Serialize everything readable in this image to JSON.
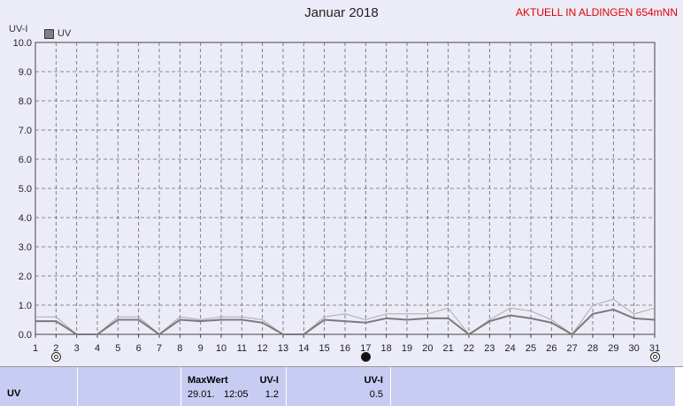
{
  "title": "Januar 2018",
  "station": "AKTUELL IN ALDINGEN 654mNN",
  "legend": {
    "label": "UV"
  },
  "moon_phases": [
    {
      "day": 2,
      "phase": "full"
    },
    {
      "day": 17,
      "phase": "new"
    },
    {
      "day": 31,
      "phase": "full"
    }
  ],
  "chart_data": {
    "type": "line",
    "ylabel": "UV-I",
    "ylim": [
      0,
      10
    ],
    "yticks": [
      "0.0",
      "1.0",
      "2.0",
      "3.0",
      "4.0",
      "5.0",
      "6.0",
      "7.0",
      "8.0",
      "9.0",
      "10.0"
    ],
    "x": [
      1,
      2,
      3,
      4,
      5,
      6,
      7,
      8,
      9,
      10,
      11,
      12,
      13,
      14,
      15,
      16,
      17,
      18,
      19,
      20,
      21,
      22,
      23,
      24,
      25,
      26,
      27,
      28,
      29,
      30,
      31
    ],
    "grid": true,
    "series": [
      {
        "name": "UV",
        "color": "#7a7a7a",
        "values": [
          0.45,
          0.45,
          0,
          0,
          0.5,
          0.5,
          0,
          0.5,
          0.45,
          0.5,
          0.5,
          0.4,
          0,
          0,
          0.5,
          0.45,
          0.4,
          0.55,
          0.5,
          0.55,
          0.55,
          0,
          0.45,
          0.65,
          0.55,
          0.4,
          0,
          0.7,
          0.85,
          0.55,
          0.5
        ]
      },
      {
        "color": "#aaaaaa",
        "values": [
          0.6,
          0.6,
          0,
          0,
          0.6,
          0.6,
          0,
          0.6,
          0.5,
          0.6,
          0.6,
          0.5,
          0,
          0,
          0.6,
          0.7,
          0.5,
          0.7,
          0.7,
          0.7,
          0.9,
          0,
          0.5,
          0.9,
          0.8,
          0.5,
          0,
          1.0,
          1.2,
          0.7,
          0.9
        ]
      }
    ]
  },
  "table": {
    "row_label": "UV",
    "maxwert_label": "MaxWert",
    "unit_label_1": "UV-I",
    "max_date": "29.01.",
    "max_time": "12:05",
    "max_value": "1.2",
    "unit_label_2": "UV-I",
    "mean_value": "0.5"
  }
}
